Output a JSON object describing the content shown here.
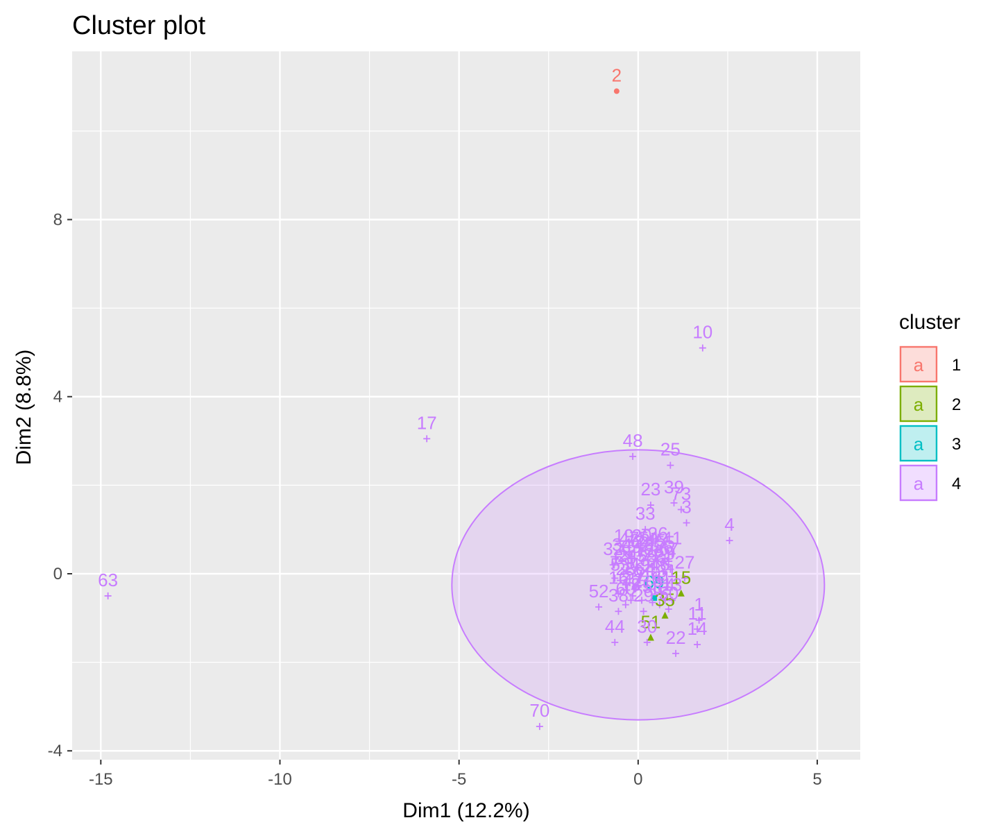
{
  "chart_data": {
    "type": "scatter",
    "title": "Cluster plot",
    "xlabel": "Dim1 (12.2%)",
    "ylabel": "Dim2 (8.8%)",
    "xlim": [
      -15.8,
      6.2
    ],
    "ylim": [
      -4.2,
      11.8
    ],
    "x_ticks": [
      -15,
      -10,
      -5,
      0,
      5
    ],
    "x_tick_labels": [
      "-15",
      "-10",
      "-5",
      "0",
      "5"
    ],
    "y_ticks": [
      -4,
      0,
      4,
      8
    ],
    "y_tick_labels": [
      "-4",
      "0",
      "4",
      "8"
    ],
    "grid": true,
    "legend": {
      "title": "cluster",
      "placement": "right",
      "entries": [
        {
          "label": "1",
          "color": "#F8766D",
          "key_text": "a"
        },
        {
          "label": "2",
          "color": "#7CAE00",
          "key_text": "a"
        },
        {
          "label": "3",
          "color": "#00BFC4",
          "key_text": "a"
        },
        {
          "label": "4",
          "color": "#C77CFF",
          "key_text": "a"
        }
      ]
    },
    "colors": {
      "panel_background": "#EBEBEB",
      "grid": "#FFFFFF",
      "cluster_1": "#F8766D",
      "cluster_2": "#7CAE00",
      "cluster_3": "#00BFC4",
      "cluster_4": "#C77CFF"
    },
    "ellipse": {
      "cluster": "4",
      "center": [
        0.0,
        -0.25
      ],
      "radius_x": 5.2,
      "radius_y": 3.05
    },
    "series": [
      {
        "name": "1",
        "shape": "point",
        "points": [
          {
            "label": "2",
            "x": -0.6,
            "y": 10.9
          }
        ]
      },
      {
        "name": "2",
        "shape": "triangle",
        "points": [
          {
            "label": "35",
            "x": 0.75,
            "y": -0.95
          },
          {
            "label": "51",
            "x": 0.35,
            "y": -1.45
          },
          {
            "label": "15",
            "x": 1.2,
            "y": -0.45
          }
        ]
      },
      {
        "name": "3",
        "shape": "square",
        "points": [
          {
            "label": "69",
            "x": 0.45,
            "y": -0.55
          }
        ]
      },
      {
        "name": "4",
        "shape": "cross",
        "points": [
          {
            "label": "63",
            "x": -14.8,
            "y": -0.5
          },
          {
            "label": "17",
            "x": -5.9,
            "y": 3.05
          },
          {
            "label": "10",
            "x": 1.8,
            "y": 5.1
          },
          {
            "label": "48",
            "x": -0.15,
            "y": 2.65
          },
          {
            "label": "25",
            "x": 0.9,
            "y": 2.45
          },
          {
            "label": "23",
            "x": 0.35,
            "y": 1.55
          },
          {
            "label": "39",
            "x": 1.0,
            "y": 1.6
          },
          {
            "label": "73",
            "x": 1.2,
            "y": 1.45
          },
          {
            "label": "3",
            "x": 1.35,
            "y": 1.15
          },
          {
            "label": "33",
            "x": 0.2,
            "y": 1.0
          },
          {
            "label": "4",
            "x": 2.55,
            "y": 0.75
          },
          {
            "label": "19",
            "x": -0.4,
            "y": 0.5
          },
          {
            "label": "72",
            "x": -0.1,
            "y": 0.35
          },
          {
            "label": "45",
            "x": 0.5,
            "y": 0.4
          },
          {
            "label": "55",
            "x": 0.75,
            "y": 0.35
          },
          {
            "label": "32",
            "x": -0.7,
            "y": 0.2
          },
          {
            "label": "27",
            "x": 1.3,
            "y": -0.1
          },
          {
            "label": "7",
            "x": -0.65,
            "y": -0.1
          },
          {
            "label": "52",
            "x": -1.1,
            "y": -0.75
          },
          {
            "label": "16",
            "x": -0.55,
            "y": -0.45
          },
          {
            "label": "1",
            "x": 1.7,
            "y": -1.05
          },
          {
            "label": "38",
            "x": -0.55,
            "y": -0.85
          },
          {
            "label": "44",
            "x": -0.65,
            "y": -1.55
          },
          {
            "label": "11",
            "x": 1.65,
            "y": -1.25
          },
          {
            "label": "14",
            "x": 1.65,
            "y": -1.6
          },
          {
            "label": "22",
            "x": 1.05,
            "y": -1.8
          },
          {
            "label": "30",
            "x": 0.25,
            "y": -1.55
          },
          {
            "label": "70",
            "x": -2.75,
            "y": -3.45
          },
          {
            "label": "6",
            "x": 0.0,
            "y": -0.3
          },
          {
            "label": "8",
            "x": 0.3,
            "y": 0.2
          },
          {
            "label": "9",
            "x": 0.9,
            "y": 0.1
          },
          {
            "label": "12",
            "x": 0.6,
            "y": -0.7
          },
          {
            "label": "13",
            "x": 0.95,
            "y": -0.6
          },
          {
            "label": "18",
            "x": -0.2,
            "y": -0.6
          },
          {
            "label": "20",
            "x": 0.1,
            "y": 0.5
          },
          {
            "label": "21",
            "x": 0.7,
            "y": 0.05
          },
          {
            "label": "24",
            "x": -0.3,
            "y": 0.05
          },
          {
            "label": "26",
            "x": 0.45,
            "y": 0.15
          },
          {
            "label": "28",
            "x": -0.35,
            "y": -0.25
          },
          {
            "label": "29",
            "x": 0.15,
            "y": -0.85
          },
          {
            "label": "31",
            "x": 0.8,
            "y": -0.3
          },
          {
            "label": "34",
            "x": -0.45,
            "y": 0.3
          },
          {
            "label": "36",
            "x": 0.55,
            "y": 0.55
          },
          {
            "label": "37",
            "x": -0.05,
            "y": 0.15
          },
          {
            "label": "40",
            "x": 0.35,
            "y": -0.35
          },
          {
            "label": "41",
            "x": 0.95,
            "y": 0.45
          },
          {
            "label": "42",
            "x": -0.15,
            "y": -0.5
          },
          {
            "label": "43",
            "x": 0.15,
            "y": 0.3
          },
          {
            "label": "46",
            "x": 0.6,
            "y": -0.15
          },
          {
            "label": "47",
            "x": -0.25,
            "y": 0.45
          },
          {
            "label": "49",
            "x": 0.05,
            "y": -0.15
          },
          {
            "label": "50",
            "x": 0.85,
            "y": -0.8
          },
          {
            "label": "53",
            "x": -0.5,
            "y": -0.15
          },
          {
            "label": "54",
            "x": 0.3,
            "y": 0.45
          },
          {
            "label": "56",
            "x": 0.7,
            "y": 0.25
          },
          {
            "label": "57",
            "x": -0.1,
            "y": -0.35
          },
          {
            "label": "58",
            "x": 0.4,
            "y": -0.65
          },
          {
            "label": "59",
            "x": 0.25,
            "y": 0.05
          },
          {
            "label": "60",
            "x": -0.35,
            "y": -0.7
          },
          {
            "label": "61",
            "x": 0.65,
            "y": -0.45
          },
          {
            "label": "62",
            "x": 0.05,
            "y": 0.4
          },
          {
            "label": "64",
            "x": 0.2,
            "y": -0.25
          },
          {
            "label": "65",
            "x": -0.2,
            "y": 0.25
          },
          {
            "label": "66",
            "x": 0.5,
            "y": -0.05
          },
          {
            "label": "67",
            "x": 0.85,
            "y": 0.2
          },
          {
            "label": "68",
            "x": -0.4,
            "y": 0.0
          },
          {
            "label": "71",
            "x": 0.1,
            "y": -0.6
          },
          {
            "label": "74",
            "x": 0.75,
            "y": -0.6
          }
        ]
      }
    ]
  }
}
